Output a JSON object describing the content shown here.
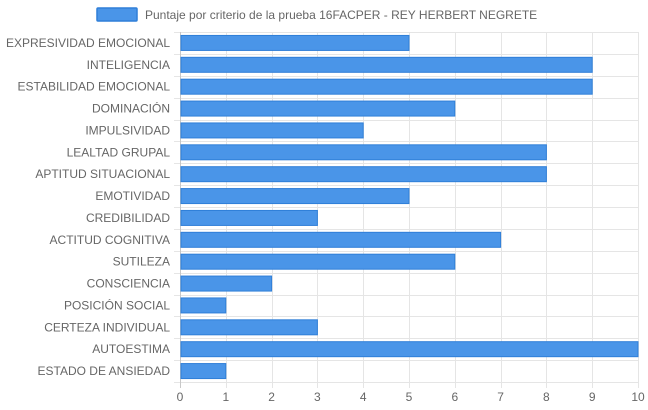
{
  "chart_data": {
    "type": "bar",
    "orientation": "horizontal",
    "categories": [
      "EXPRESIVIDAD EMOCIONAL",
      "INTELIGENCIA",
      "ESTABILIDAD EMOCIONAL",
      "DOMINACIÓN",
      "IMPULSIVIDAD",
      "LEALTAD GRUPAL",
      "APTITUD SITUACIONAL",
      "EMOTIVIDAD",
      "CREDIBILIDAD",
      "ACTITUD COGNITIVA",
      "SUTILEZA",
      "CONSCIENCIA",
      "POSICIÓN SOCIAL",
      "CERTEZA INDIVIDUAL",
      "AUTOESTIMA",
      "ESTADO DE ANSIEDAD"
    ],
    "series": [
      {
        "name": "Puntaje por criterio de la prueba 16FACPER - REY HERBERT NEGRETE",
        "values": [
          5,
          9,
          9,
          6,
          4,
          8,
          8,
          5,
          3,
          7,
          6,
          2,
          1,
          3,
          10,
          1
        ],
        "color": "#4a95e8",
        "border_color": "#2f7fd8"
      }
    ],
    "xlim": [
      0,
      10
    ],
    "x_ticks": [
      "0",
      "1",
      "2",
      "3",
      "4",
      "5",
      "6",
      "7",
      "8",
      "9",
      "10"
    ],
    "grid": true,
    "legend_position": "top",
    "grid_color": "#e5e5e5"
  }
}
